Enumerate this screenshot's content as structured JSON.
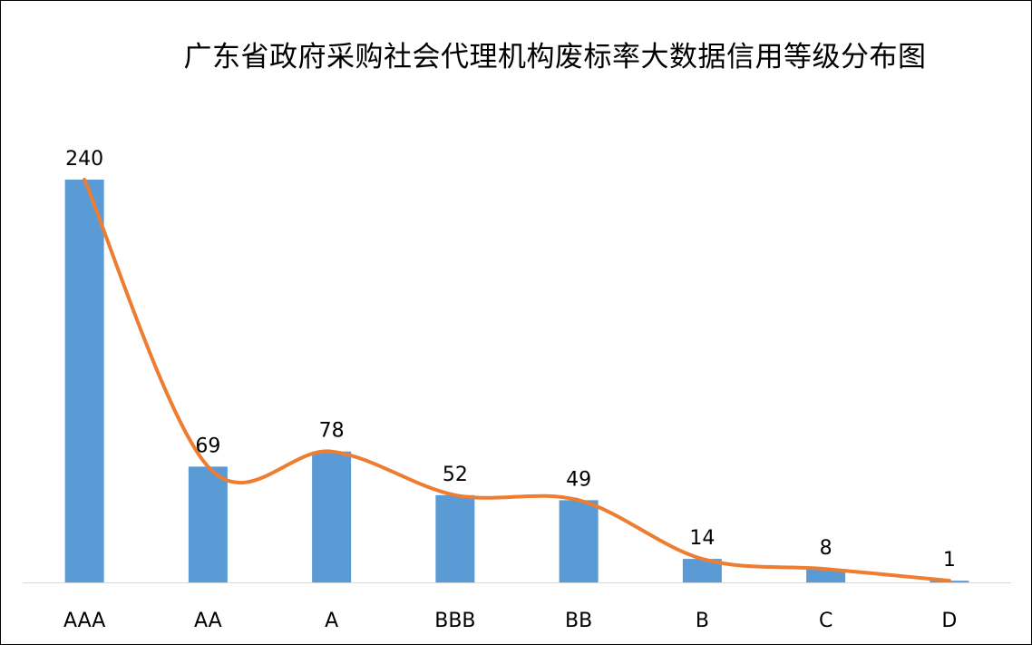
{
  "chart_data": {
    "type": "bar",
    "title": "广东省政府采购社会代理机构废标率大数据信用等级分布图",
    "categories": [
      "AAA",
      "AA",
      "A",
      "BBB",
      "BB",
      "B",
      "C",
      "D"
    ],
    "values": [
      240,
      69,
      78,
      52,
      49,
      14,
      8,
      1
    ],
    "series": [
      {
        "type": "bar",
        "values": [
          240,
          69,
          78,
          52,
          49,
          14,
          8,
          1
        ],
        "color": "#5b9bd5"
      },
      {
        "type": "line",
        "smooth": true,
        "values": [
          240,
          69,
          78,
          52,
          49,
          14,
          8,
          1
        ],
        "color": "#ed7d31"
      }
    ],
    "xlabel": "",
    "ylabel": "",
    "ylim": [
      0,
      240
    ],
    "grid": false,
    "legend": "none",
    "data_labels": true
  }
}
